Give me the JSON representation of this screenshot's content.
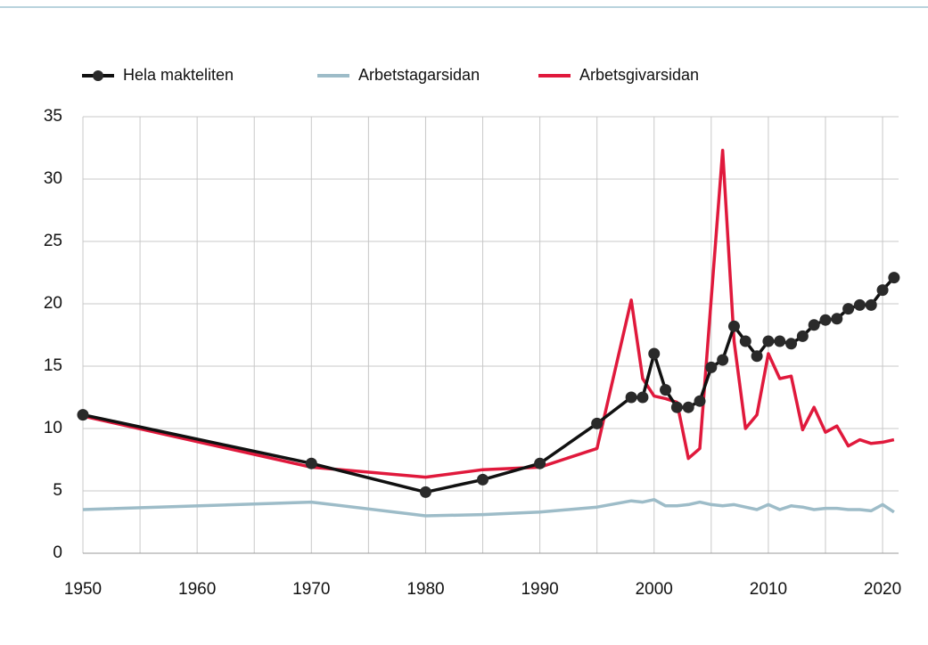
{
  "chart_data": {
    "type": "line",
    "x": [
      1950,
      1970,
      1980,
      1985,
      1990,
      1995,
      1998,
      1999,
      2000,
      2001,
      2002,
      2003,
      2004,
      2005,
      2006,
      2007,
      2008,
      2009,
      2010,
      2011,
      2012,
      2013,
      2014,
      2015,
      2016,
      2017,
      2018,
      2019,
      2020,
      2021
    ],
    "series": [
      {
        "name": "Hela makteliten",
        "color": "#111111",
        "markers": true,
        "values": [
          11.1,
          7.2,
          4.9,
          5.9,
          7.2,
          10.4,
          12.5,
          12.5,
          16.0,
          13.1,
          11.7,
          11.7,
          12.2,
          14.9,
          15.5,
          18.2,
          17.0,
          15.8,
          17.0,
          17.0,
          16.8,
          17.4,
          18.3,
          18.7,
          18.8,
          19.6,
          19.9,
          19.9,
          21.1,
          22.1
        ]
      },
      {
        "name": "Arbetstagarsidan",
        "color": "#9dbcc8",
        "markers": false,
        "values": [
          3.5,
          4.1,
          3.0,
          3.1,
          3.3,
          3.7,
          4.2,
          4.1,
          4.3,
          3.8,
          3.8,
          3.9,
          4.1,
          3.9,
          3.8,
          3.9,
          3.7,
          3.5,
          3.9,
          3.5,
          3.8,
          3.7,
          3.5,
          3.6,
          3.6,
          3.5,
          3.5,
          3.4,
          3.9,
          3.3
        ]
      },
      {
        "name": "Arbetsgivarsidan",
        "color": "#e0193c",
        "markers": false,
        "values": [
          11.0,
          6.9,
          6.1,
          6.7,
          6.9,
          8.4,
          20.3,
          14.0,
          12.6,
          12.4,
          12.1,
          7.6,
          8.4,
          20.4,
          32.3,
          17.0,
          10.0,
          11.1,
          16.0,
          14.0,
          14.2,
          9.9,
          11.7,
          9.7,
          10.2,
          8.6,
          9.1,
          8.8,
          8.9,
          9.1
        ]
      }
    ],
    "xlim": [
      1950,
      2021.4
    ],
    "xticks": [
      1950,
      1960,
      1970,
      1980,
      1990,
      2000,
      2010,
      2020
    ],
    "xgrid": [
      1950,
      1955,
      1960,
      1965,
      1970,
      1975,
      1980,
      1985,
      1990,
      1995,
      2000,
      2005,
      2010,
      2015,
      2020
    ],
    "ylim": [
      0,
      35
    ],
    "yticks": [
      0,
      5,
      10,
      15,
      20,
      25,
      30,
      35
    ],
    "grid": true,
    "legend": "top"
  }
}
